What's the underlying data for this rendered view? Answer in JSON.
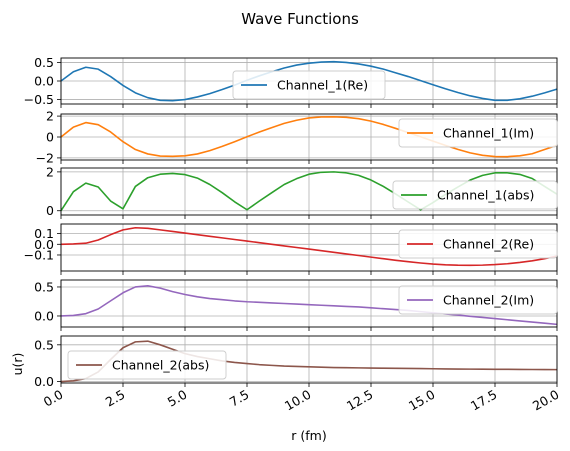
{
  "figure": {
    "title": "Wave Functions"
  },
  "chart_data": {
    "type": "line",
    "title": "Wave Functions",
    "xlabel": "r (fm)",
    "ylabel": "u(r)",
    "xlim": [
      0,
      20
    ],
    "xticks": [
      "0.0",
      "2.5",
      "5.0",
      "7.5",
      "10.0",
      "12.5",
      "15.0",
      "17.5",
      "20.0"
    ],
    "grid": true,
    "x": [
      0,
      0.5,
      1,
      1.5,
      2,
      2.5,
      3,
      3.5,
      4,
      4.5,
      5,
      5.5,
      6,
      6.5,
      7,
      7.5,
      8,
      8.5,
      9,
      9.5,
      10,
      10.5,
      11,
      11.5,
      12,
      12.5,
      13,
      13.5,
      14,
      14.5,
      15,
      15.5,
      16,
      16.5,
      17,
      17.5,
      18,
      18.5,
      19,
      19.5,
      20
    ],
    "panels": [
      {
        "series": [
          {
            "name": "Channel_1(Re)",
            "color": "#1f77b4",
            "values": [
              0.0,
              0.25,
              0.37,
              0.32,
              0.12,
              -0.12,
              -0.32,
              -0.45,
              -0.52,
              -0.53,
              -0.5,
              -0.43,
              -0.34,
              -0.23,
              -0.11,
              0.02,
              0.14,
              0.25,
              0.35,
              0.43,
              0.48,
              0.51,
              0.52,
              0.5,
              0.46,
              0.4,
              0.32,
              0.22,
              0.12,
              0.01,
              -0.1,
              -0.21,
              -0.31,
              -0.4,
              -0.47,
              -0.52,
              -0.52,
              -0.48,
              -0.41,
              -0.32,
              -0.22
            ]
          }
        ],
        "ylim": [
          -0.62,
          0.62
        ],
        "yticks": [
          0.5,
          0.0,
          -0.5
        ],
        "ytick_labels": [
          "0.5",
          "0.0",
          "−0.5"
        ],
        "legend_position": "center"
      },
      {
        "series": [
          {
            "name": "Channel_1(Im)",
            "color": "#ff7f0e",
            "values": [
              0.0,
              0.95,
              1.38,
              1.18,
              0.48,
              -0.45,
              -1.2,
              -1.62,
              -1.82,
              -1.85,
              -1.8,
              -1.62,
              -1.3,
              -0.9,
              -0.45,
              0.02,
              0.48,
              0.9,
              1.3,
              1.6,
              1.82,
              1.92,
              1.93,
              1.88,
              1.75,
              1.52,
              1.2,
              0.82,
              0.42,
              0.02,
              -0.4,
              -0.8,
              -1.18,
              -1.52,
              -1.75,
              -1.87,
              -1.88,
              -1.8,
              -1.6,
              -1.2,
              -0.8
            ]
          }
        ],
        "ylim": [
          -2.2,
          2.2
        ],
        "yticks": [
          2,
          0,
          -2
        ],
        "ytick_labels": [
          "2",
          "0",
          "−2"
        ],
        "legend_position": "right"
      },
      {
        "series": [
          {
            "name": "Channel_1(abs)",
            "color": "#2ca02c",
            "values": [
              0.0,
              0.98,
              1.42,
              1.22,
              0.5,
              0.1,
              1.25,
              1.7,
              1.88,
              1.92,
              1.86,
              1.68,
              1.35,
              0.93,
              0.46,
              0.05,
              0.5,
              0.93,
              1.35,
              1.65,
              1.88,
              1.98,
              2.0,
              1.95,
              1.82,
              1.58,
              1.25,
              0.86,
              0.45,
              0.05,
              0.42,
              0.84,
              1.22,
              1.58,
              1.82,
              1.95,
              1.95,
              1.87,
              1.66,
              1.25,
              0.85
            ]
          }
        ],
        "ylim": [
          -0.22,
          2.2
        ],
        "yticks": [
          2,
          0
        ],
        "ytick_labels": [
          "2",
          "0"
        ],
        "legend_position": "right"
      },
      {
        "series": [
          {
            "name": "Channel_2(Re)",
            "color": "#d62728",
            "values": [
              0.0,
              0.003,
              0.01,
              0.04,
              0.09,
              0.135,
              0.155,
              0.15,
              0.135,
              0.12,
              0.105,
              0.09,
              0.075,
              0.06,
              0.045,
              0.03,
              0.015,
              0.0,
              -0.015,
              -0.03,
              -0.045,
              -0.06,
              -0.075,
              -0.09,
              -0.105,
              -0.12,
              -0.135,
              -0.15,
              -0.163,
              -0.175,
              -0.185,
              -0.192,
              -0.196,
              -0.197,
              -0.195,
              -0.19,
              -0.182,
              -0.17,
              -0.155,
              -0.135,
              -0.11
            ]
          }
        ],
        "ylim": [
          -0.25,
          0.19
        ],
        "yticks": [
          0.1,
          0.0,
          -0.1
        ],
        "ytick_labels": [
          "0.1",
          "0.0",
          "−0.1"
        ],
        "legend_position": "right"
      },
      {
        "series": [
          {
            "name": "Channel_2(Im)",
            "color": "#9467bd",
            "values": [
              0.0,
              0.01,
              0.04,
              0.12,
              0.26,
              0.4,
              0.5,
              0.52,
              0.48,
              0.42,
              0.37,
              0.33,
              0.3,
              0.28,
              0.26,
              0.245,
              0.235,
              0.225,
              0.215,
              0.205,
              0.195,
              0.185,
              0.175,
              0.165,
              0.155,
              0.14,
              0.125,
              0.11,
              0.095,
              0.075,
              0.055,
              0.035,
              0.015,
              -0.005,
              -0.025,
              -0.045,
              -0.065,
              -0.085,
              -0.105,
              -0.125,
              -0.145
            ]
          }
        ],
        "ylim": [
          -0.19,
          0.62
        ],
        "yticks": [
          0.5,
          0.0
        ],
        "ytick_labels": [
          "0.5",
          "0.0"
        ],
        "legend_position": "right"
      },
      {
        "series": [
          {
            "name": "Channel_2(abs)",
            "color": "#8c564b",
            "values": [
              0.0,
              0.01,
              0.04,
              0.13,
              0.3,
              0.46,
              0.54,
              0.55,
              0.5,
              0.44,
              0.38,
              0.34,
              0.31,
              0.28,
              0.26,
              0.245,
              0.23,
              0.22,
              0.21,
              0.205,
              0.2,
              0.195,
              0.19,
              0.188,
              0.186,
              0.184,
              0.182,
              0.18,
              0.178,
              0.176,
              0.174,
              0.172,
              0.17,
              0.169,
              0.168,
              0.167,
              0.166,
              0.165,
              0.164,
              0.163,
              0.162
            ]
          }
        ],
        "ylim": [
          -0.02,
          0.62
        ],
        "yticks": [
          0.5,
          0.0
        ],
        "ytick_labels": [
          "0.5",
          "0.0"
        ],
        "legend_position": "left"
      }
    ]
  }
}
